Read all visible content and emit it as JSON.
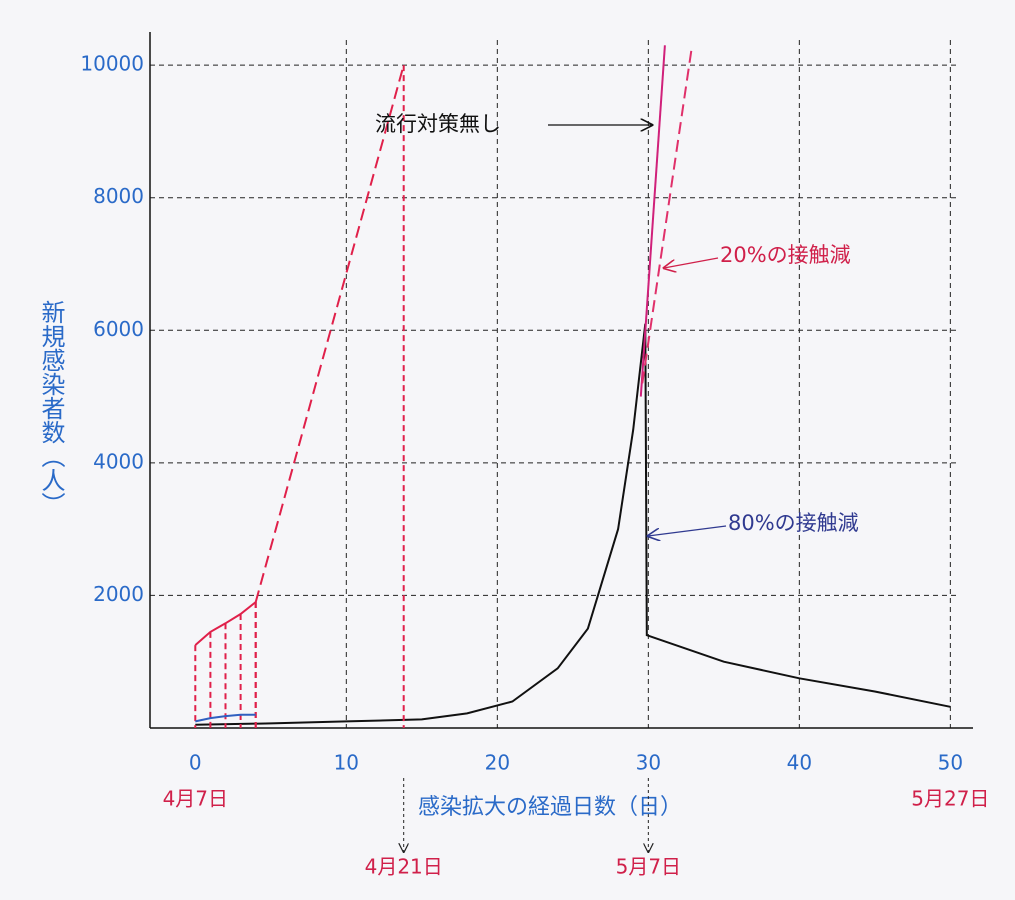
{
  "chart_data": {
    "type": "line",
    "x_label": "感染拡大の経過日数（日）",
    "y_label": "新規感染者数（人）",
    "xlim": [
      -3,
      51.5
    ],
    "ylim": [
      0,
      10500
    ],
    "xticks": [
      0,
      10,
      20,
      30,
      40,
      50
    ],
    "yticks": [
      2000,
      4000,
      6000,
      8000,
      10000
    ],
    "grid": true,
    "series": [
      {
        "color": "#111111",
        "dash": false,
        "x": [
          0,
          5,
          10,
          15,
          18,
          21,
          24,
          26,
          28,
          29,
          29.8,
          29.9,
          35,
          40,
          45,
          50
        ],
        "values": [
          50,
          70,
          100,
          130,
          220,
          400,
          900,
          1500,
          3000,
          4500,
          6100,
          1400,
          1000,
          750,
          550,
          320
        ]
      },
      {
        "color": "#d0207a",
        "dash": false,
        "x": [
          29.5,
          31.1
        ],
        "values": [
          5000,
          10300
        ]
      },
      {
        "color": "#e0306a",
        "dash": true,
        "x": [
          29.6,
          32.9
        ],
        "values": [
          5200,
          10300
        ]
      },
      {
        "color": "#e0204a",
        "dash": false,
        "droplines": true,
        "x": [
          0,
          1,
          2,
          3,
          4
        ],
        "values": [
          1250,
          1450,
          1580,
          1720,
          1900
        ]
      },
      {
        "color": "#e0204a",
        "dash": true,
        "droplines": true,
        "x": [
          4,
          13.8
        ],
        "values": [
          1900,
          10000
        ]
      },
      {
        "color": "#3060c0",
        "dash": false,
        "x": [
          0,
          1,
          2,
          3,
          4
        ],
        "values": [
          100,
          150,
          180,
          200,
          200
        ]
      }
    ],
    "annotations": [
      {
        "text": "流行対策無し",
        "color": "#111111"
      },
      {
        "text": "20%の接触減",
        "color": "#d0204a"
      },
      {
        "text": "80%の接触減",
        "color": "#303a90"
      }
    ],
    "date_labels": [
      {
        "x": 0,
        "label": "4月7日"
      },
      {
        "x": 13.8,
        "label": "4月21日"
      },
      {
        "x": 30,
        "label": "5月7日"
      },
      {
        "x": 50,
        "label": "5月27日"
      }
    ]
  }
}
